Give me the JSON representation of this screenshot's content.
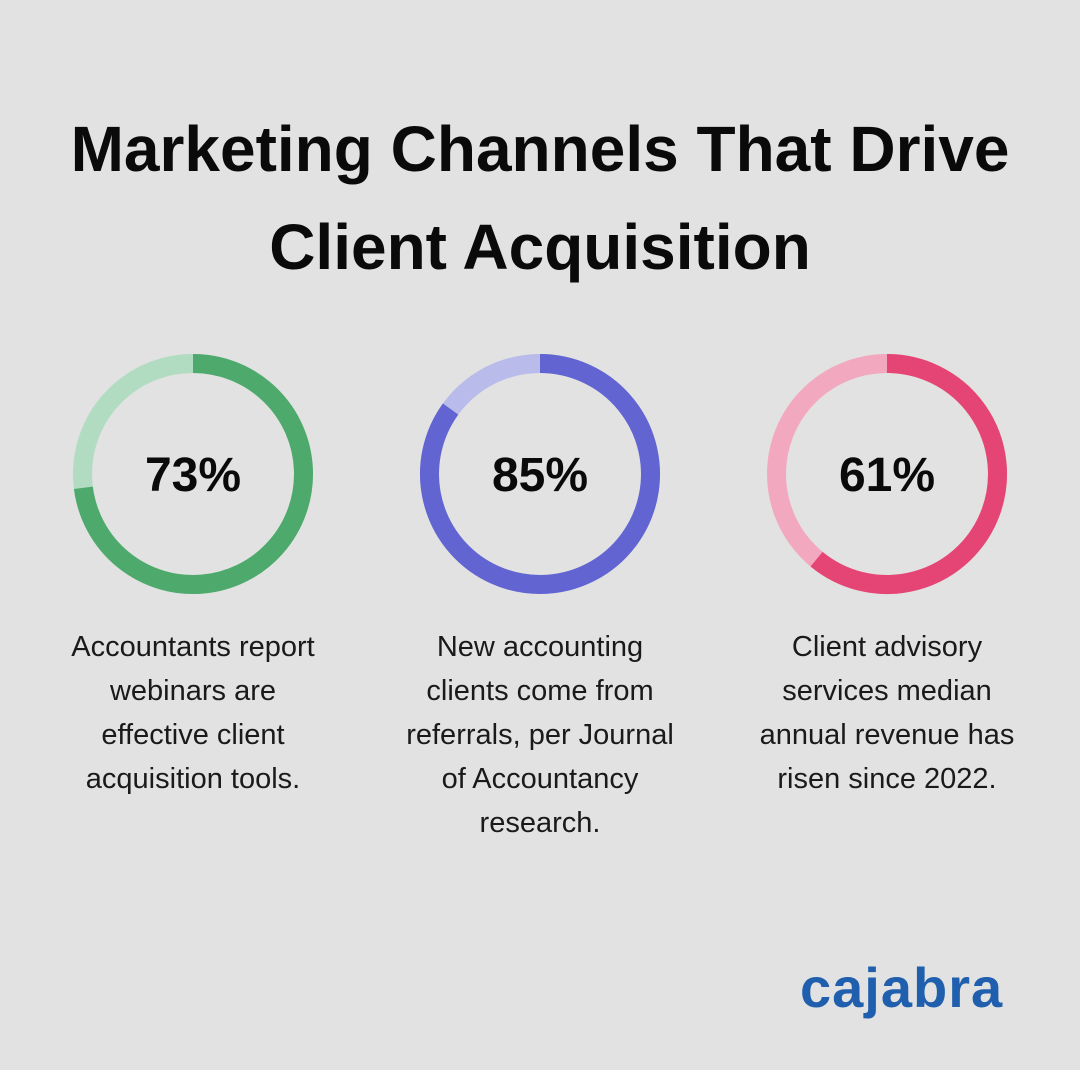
{
  "title": "Marketing Channels That Drive Client Acquisition",
  "chart_data": [
    {
      "type": "donut",
      "values": [
        73
      ],
      "value_labels": [
        "73%"
      ],
      "ylim": [
        0,
        100
      ],
      "color": "#4ea96c",
      "track_color": "#b2dcc2",
      "caption_lines": [
        "Accountants report",
        "webinars are",
        "effective client",
        "acquisition tools."
      ]
    },
    {
      "type": "donut",
      "values": [
        85
      ],
      "value_labels": [
        "85%"
      ],
      "ylim": [
        0,
        100
      ],
      "color": "#6164d1",
      "track_color": "#b9bbea",
      "caption_lines": [
        "New accounting",
        "clients come from",
        "referrals, per Journal",
        "of Accountancy",
        "research."
      ]
    },
    {
      "type": "donut",
      "values": [
        61
      ],
      "value_labels": [
        "61%"
      ],
      "ylim": [
        0,
        100
      ],
      "color": "#e54574",
      "track_color": "#f2a9c0",
      "caption_lines": [
        "Client advisory",
        "services median",
        "annual revenue has",
        "risen since 2022."
      ]
    }
  ],
  "logo": "cajabra"
}
